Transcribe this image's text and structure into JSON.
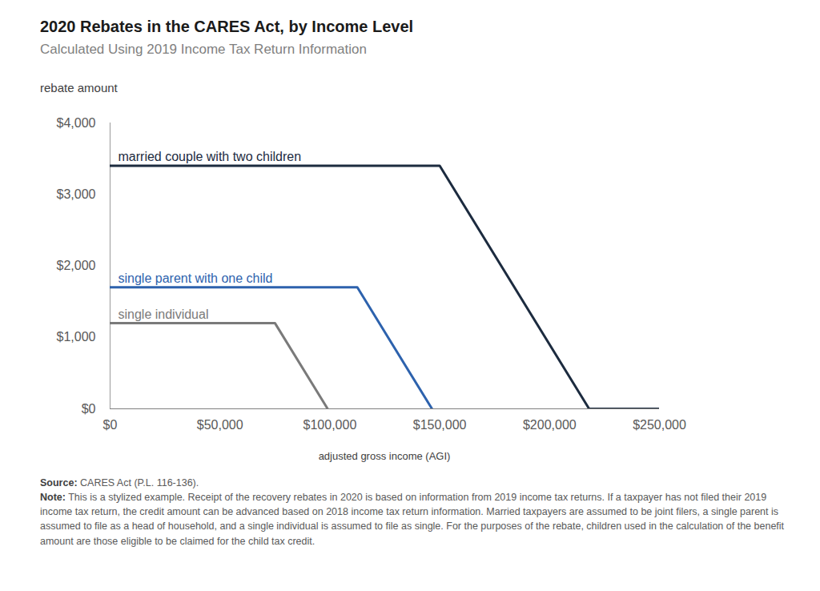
{
  "chart_data": {
    "type": "line",
    "title": "2020 Rebates in the CARES Act, by Income Level",
    "subtitle": "Calculated Using 2019 Income Tax Return Information",
    "y_label": "rebate amount",
    "x_label": "adjusted gross income (AGI)",
    "source_label": "Source:",
    "source": "CARES Act (P.L. 116-136).",
    "note_label": "Note:",
    "note": "This is a stylized example. Receipt of the recovery rebates in 2020 is based on information from 2019 income tax returns. If a taxpayer has not filed their 2019 income tax return, the credit amount can be advanced based on 2018 income tax return information. Married taxpayers are assumed to be joint filers, a single parent is assumed to file as a head of household, and a single individual is assumed to file as single. For the purposes of the rebate, children used in the calculation of the benefit amount are those eligible to be claimed for the child tax credit.",
    "xlim": [
      0,
      250000
    ],
    "xticks": [
      {
        "value": 0,
        "label": "$0"
      },
      {
        "value": 50000,
        "label": "$50,000"
      },
      {
        "value": 100000,
        "label": "$100,000"
      },
      {
        "value": 150000,
        "label": "$150,000"
      },
      {
        "value": 200000,
        "label": "$200,000"
      },
      {
        "value": 250000,
        "label": "$250,000"
      }
    ],
    "ylim": [
      0,
      4000
    ],
    "yticks": [
      {
        "value": 0,
        "label": "$0"
      },
      {
        "value": 1000,
        "label": "$1,000"
      },
      {
        "value": 2000,
        "label": "$2,000"
      },
      {
        "value": 3000,
        "label": "$3,000"
      },
      {
        "value": 4000,
        "label": "$4,000"
      }
    ],
    "grid": false,
    "series": [
      {
        "name": "married couple with two children",
        "color": "#1c2b3f",
        "x": [
          0,
          150000,
          218000,
          250000
        ],
        "values": [
          3400,
          3400,
          0,
          0
        ]
      },
      {
        "name": "single parent with one child",
        "color": "#2d62ad",
        "x": [
          0,
          112500,
          146500
        ],
        "values": [
          1700,
          1700,
          0
        ]
      },
      {
        "name": "single individual",
        "color": "#7a7a7a",
        "x": [
          0,
          75000,
          99000
        ],
        "values": [
          1200,
          1200,
          0
        ]
      }
    ]
  }
}
